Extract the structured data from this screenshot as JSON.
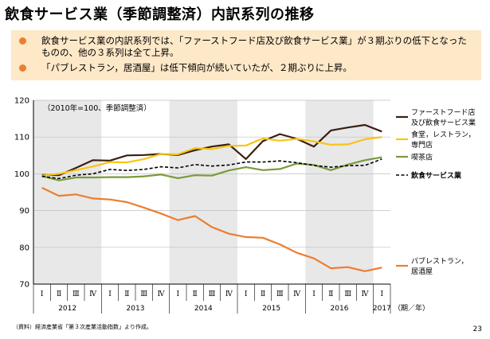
{
  "slide": {
    "title": "飲食サービス業（季節調整済）内訳系列の推移",
    "bullets": [
      "飲食サービス業の内訳系列では、「ファーストフード店及び飲食サービス業」が３期ぶりの低下となったものの、他の３系列は全て上昇。",
      "「パブレストラン，居酒屋」は低下傾向が続いていたが、２期ぶりに上昇。"
    ],
    "source": "（資料）経済産業省「第３次産業活動指数」より作成。",
    "page_number": "23"
  },
  "chart_data": {
    "type": "line",
    "note": "（2010年=100、季節調整済）",
    "unit_label": "（期／年）",
    "ylim": [
      70,
      120
    ],
    "yticks": [
      70,
      80,
      90,
      100,
      110,
      120
    ],
    "quarter_labels": [
      "Ⅰ",
      "Ⅱ",
      "Ⅲ",
      "Ⅳ",
      "Ⅰ",
      "Ⅱ",
      "Ⅲ",
      "Ⅳ",
      "Ⅰ",
      "Ⅱ",
      "Ⅲ",
      "Ⅳ",
      "Ⅰ",
      "Ⅱ",
      "Ⅲ",
      "Ⅳ",
      "Ⅰ",
      "Ⅱ",
      "Ⅲ",
      "Ⅳ",
      "Ⅰ"
    ],
    "years": [
      {
        "label": "2012",
        "start": 0,
        "end": 3,
        "shaded": true
      },
      {
        "label": "2013",
        "start": 4,
        "end": 7,
        "shaded": false
      },
      {
        "label": "2014",
        "start": 8,
        "end": 11,
        "shaded": true
      },
      {
        "label": "2015",
        "start": 12,
        "end": 15,
        "shaded": false
      },
      {
        "label": "2016",
        "start": 16,
        "end": 19,
        "shaded": true
      },
      {
        "label": "2017",
        "start": 20,
        "end": 20,
        "shaded": false
      }
    ],
    "series": [
      {
        "name": "ファーストフード店及び飲食サービス業",
        "color": "#3b1f0f",
        "dash": false,
        "values": [
          99.7,
          99.6,
          101.6,
          103.7,
          103.6,
          105.0,
          105.1,
          105.4,
          105.1,
          106.4,
          107.4,
          108.0,
          104.0,
          108.9,
          110.8,
          109.5,
          107.4,
          111.8,
          112.6,
          113.3,
          111.5
        ]
      },
      {
        "name": "食堂，レストラン，専門店",
        "color": "#f7c514",
        "dash": false,
        "values": [
          99.5,
          100.0,
          101.0,
          102.0,
          103.2,
          103.1,
          104.0,
          105.4,
          105.3,
          107.0,
          106.7,
          107.6,
          107.7,
          109.6,
          109.0,
          109.5,
          108.8,
          107.9,
          108.0,
          109.4,
          110.0
        ]
      },
      {
        "name": "喫茶店",
        "color": "#7a9a3a",
        "dash": false,
        "values": [
          99.4,
          98.2,
          99.0,
          99.0,
          99.1,
          99.1,
          99.3,
          99.8,
          98.8,
          99.6,
          99.5,
          100.9,
          101.8,
          101.0,
          101.3,
          102.8,
          102.4,
          101.0,
          102.5,
          103.7,
          104.5
        ]
      },
      {
        "name": "飲食サービス業",
        "color": "#000000",
        "dash": true,
        "values": [
          99.3,
          98.7,
          99.6,
          100.0,
          101.2,
          100.9,
          101.2,
          101.9,
          101.6,
          102.5,
          102.1,
          102.4,
          103.2,
          103.2,
          103.5,
          103.0,
          102.3,
          101.8,
          102.2,
          102.3,
          104.0
        ]
      },
      {
        "name": "パブレストラン，居酒屋",
        "color": "#ed7d31",
        "dash": false,
        "values": [
          96.2,
          94.0,
          94.4,
          93.3,
          93.0,
          92.3,
          90.8,
          89.2,
          87.4,
          88.5,
          85.5,
          83.7,
          82.8,
          82.6,
          80.8,
          78.5,
          77.0,
          74.3,
          74.6,
          73.5,
          74.5
        ]
      }
    ],
    "legend": [
      {
        "text": "ファーストフード店\n及び飲食サービス業",
        "color": "#3b1f0f",
        "dash": false
      },
      {
        "text": "食堂，レストラン，\n専門店",
        "color": "#f7c514",
        "dash": false
      },
      {
        "text": "喫茶店",
        "color": "#7a9a3a",
        "dash": false
      },
      {
        "text": "飲食サービス業",
        "color": "#000000",
        "dash": true
      },
      {
        "text": "パブレストラン，\n居酒屋",
        "color": "#ed7d31",
        "dash": false
      }
    ]
  }
}
